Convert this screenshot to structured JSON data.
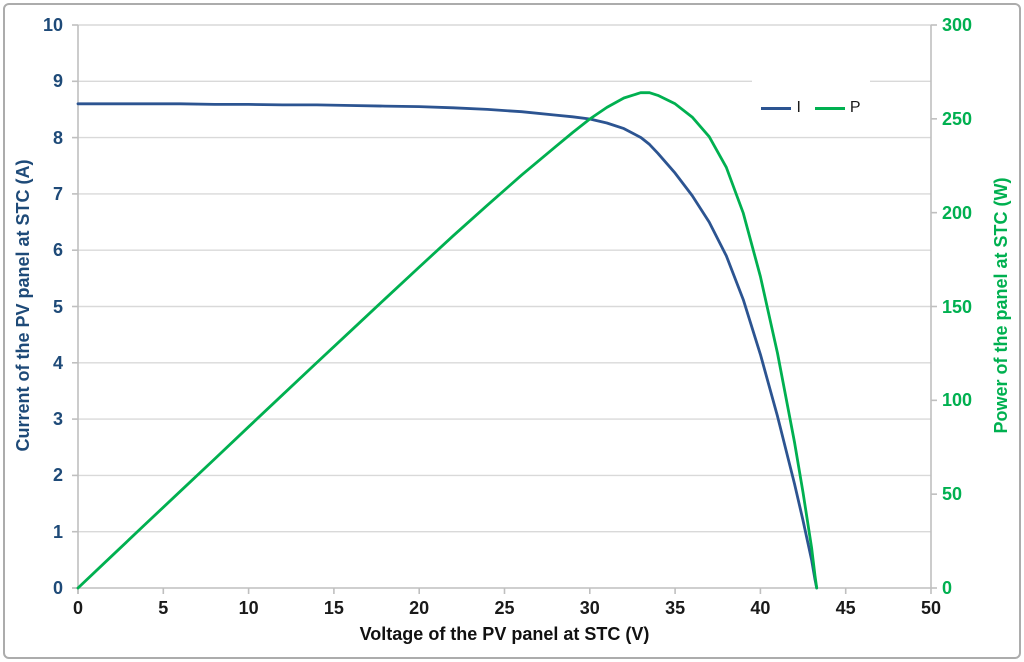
{
  "chart_data": {
    "type": "line",
    "title": "",
    "grid": "horizontal",
    "legend_position": "inside-top-right",
    "x_axis": {
      "label": "Voltage of the PV panel at STC (V)",
      "min": 0,
      "max": 50,
      "ticks": [
        0,
        5,
        10,
        15,
        20,
        25,
        30,
        35,
        40,
        45,
        50
      ],
      "color": "#1a1a1a"
    },
    "y_axis_left": {
      "label": "Current of the PV panel at STC (A)",
      "min": 0,
      "max": 10,
      "ticks": [
        0,
        1,
        2,
        3,
        4,
        5,
        6,
        7,
        8,
        9,
        10
      ],
      "color": "#1e4a78"
    },
    "y_axis_right": {
      "label": "Power of the panel at STC (W)",
      "min": 0,
      "max": 300,
      "ticks": [
        0,
        50,
        100,
        150,
        200,
        250,
        300
      ],
      "color": "#00b050"
    },
    "series": [
      {
        "name": "I",
        "axis": "left",
        "color": "#2c5491",
        "points": [
          [
            0,
            8.6
          ],
          [
            2,
            8.6
          ],
          [
            4,
            8.6
          ],
          [
            6,
            8.6
          ],
          [
            8,
            8.59
          ],
          [
            10,
            8.59
          ],
          [
            12,
            8.58
          ],
          [
            14,
            8.58
          ],
          [
            16,
            8.57
          ],
          [
            18,
            8.56
          ],
          [
            20,
            8.55
          ],
          [
            22,
            8.53
          ],
          [
            24,
            8.5
          ],
          [
            26,
            8.46
          ],
          [
            28,
            8.4
          ],
          [
            29,
            8.37
          ],
          [
            30,
            8.33
          ],
          [
            31,
            8.26
          ],
          [
            32,
            8.16
          ],
          [
            33,
            8.0
          ],
          [
            33.5,
            7.88
          ],
          [
            34,
            7.72
          ],
          [
            35,
            7.37
          ],
          [
            36,
            6.97
          ],
          [
            37,
            6.5
          ],
          [
            38,
            5.9
          ],
          [
            39,
            5.12
          ],
          [
            40,
            4.15
          ],
          [
            41,
            3.05
          ],
          [
            42,
            1.85
          ],
          [
            42.5,
            1.2
          ],
          [
            43,
            0.5
          ],
          [
            43.2,
            0.15
          ],
          [
            43.3,
            0
          ]
        ]
      },
      {
        "name": "P",
        "axis": "right",
        "color": "#00b050",
        "points": [
          [
            0,
            0
          ],
          [
            2,
            17.2
          ],
          [
            4,
            34.4
          ],
          [
            6,
            51.6
          ],
          [
            8,
            68.7
          ],
          [
            10,
            85.9
          ],
          [
            12,
            103.0
          ],
          [
            14,
            120.1
          ],
          [
            16,
            137.1
          ],
          [
            18,
            154.1
          ],
          [
            20,
            171.0
          ],
          [
            22,
            187.7
          ],
          [
            24,
            204.0
          ],
          [
            26,
            220.0
          ],
          [
            28,
            235.2
          ],
          [
            29,
            242.7
          ],
          [
            30,
            249.9
          ],
          [
            31,
            256.1
          ],
          [
            32,
            261.1
          ],
          [
            33,
            264.0
          ],
          [
            33.5,
            263.9
          ],
          [
            34,
            262.5
          ],
          [
            35,
            258.0
          ],
          [
            36,
            250.9
          ],
          [
            37,
            240.5
          ],
          [
            38,
            224.2
          ],
          [
            39,
            199.7
          ],
          [
            40,
            166.0
          ],
          [
            41,
            125.1
          ],
          [
            42,
            77.7
          ],
          [
            42.5,
            51.0
          ],
          [
            43,
            21.5
          ],
          [
            43.2,
            6.5
          ],
          [
            43.3,
            0
          ]
        ]
      }
    ],
    "max_power_point": {
      "voltage": 33,
      "power": 264
    },
    "open_circuit_voltage": 43.3,
    "short_circuit_current": 8.6
  },
  "style": {
    "gridline_color": "#d9d9d9",
    "axis_line_color": "#bfbfbf",
    "background": "#ffffff"
  }
}
